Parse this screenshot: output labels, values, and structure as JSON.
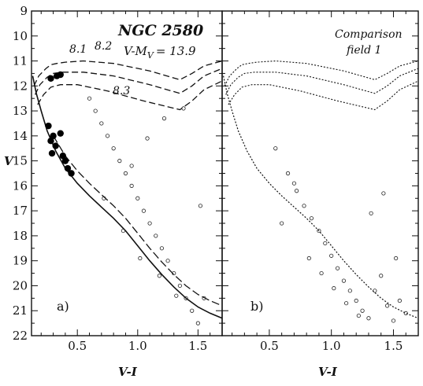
{
  "chart_data": [
    {
      "type": "scatter",
      "panel_letter": "a)",
      "title": "NGC 2580",
      "distance_modulus": "V-M",
      "distance_modulus_sub": "V",
      "distance_modulus_value": "= 13.9",
      "xlabel": "V-I",
      "ylabel": "V",
      "xlim": [
        0.12,
        1.7
      ],
      "ylim": [
        22,
        9
      ],
      "y_inverted": true,
      "x_ticks": [
        "0.5",
        "1.0",
        "1.5"
      ],
      "y_ticks": [
        "9",
        "10",
        "11",
        "12",
        "13",
        "14",
        "15",
        "16",
        "17",
        "18",
        "19",
        "20",
        "21",
        "22"
      ],
      "isochrone_labels": [
        "8.1",
        "8.2",
        "8.3"
      ],
      "series": [
        {
          "kind": "isochrone",
          "label": "8.1",
          "x": [
            0.14,
            0.18,
            0.24,
            0.28,
            0.33,
            0.4,
            0.55,
            0.8,
            1.1,
            1.35,
            1.45,
            1.55,
            1.7
          ],
          "y": [
            12.0,
            11.6,
            11.3,
            11.15,
            11.1,
            11.05,
            11.0,
            11.1,
            11.4,
            11.75,
            11.5,
            11.2,
            11.0
          ]
        },
        {
          "kind": "isochrone",
          "label": "8.2",
          "x": [
            0.15,
            0.19,
            0.25,
            0.3,
            0.38,
            0.55,
            0.8,
            1.1,
            1.35,
            1.45,
            1.55,
            1.7
          ],
          "y": [
            12.35,
            11.95,
            11.65,
            11.5,
            11.45,
            11.45,
            11.6,
            11.95,
            12.3,
            12.0,
            11.6,
            11.3
          ]
        },
        {
          "kind": "isochrone",
          "label": "8.3",
          "x": [
            0.17,
            0.22,
            0.28,
            0.36,
            0.5,
            0.75,
            1.05,
            1.35,
            1.45,
            1.55,
            1.7
          ],
          "y": [
            12.75,
            12.35,
            12.05,
            11.95,
            11.95,
            12.2,
            12.6,
            12.95,
            12.6,
            12.15,
            11.8
          ]
        },
        {
          "kind": "zams",
          "x": [
            0.13,
            0.16,
            0.2,
            0.25,
            0.32,
            0.4,
            0.5,
            0.6,
            0.7,
            0.8,
            0.9,
            1.0,
            1.1,
            1.2,
            1.3,
            1.4,
            1.5,
            1.6,
            1.7
          ],
          "y": [
            11.6,
            12.3,
            13.0,
            13.8,
            14.6,
            15.3,
            15.9,
            16.4,
            16.85,
            17.3,
            17.8,
            18.4,
            19.0,
            19.55,
            20.05,
            20.5,
            20.85,
            21.1,
            21.3
          ]
        },
        {
          "kind": "binary-sequence",
          "x": [
            0.3,
            0.4,
            0.5,
            0.6,
            0.7,
            0.8,
            0.9,
            1.0,
            1.1,
            1.2,
            1.3,
            1.4,
            1.5,
            1.6,
            1.7
          ],
          "y": [
            14.0,
            14.8,
            15.4,
            15.9,
            16.35,
            16.8,
            17.3,
            17.9,
            18.5,
            19.05,
            19.55,
            20.0,
            20.35,
            20.6,
            20.8
          ]
        },
        {
          "kind": "members",
          "x": [
            0.26,
            0.28,
            0.29,
            0.3,
            0.32,
            0.36,
            0.38,
            0.4,
            0.42,
            0.45,
            0.28,
            0.33,
            0.36
          ],
          "y": [
            13.6,
            14.2,
            14.7,
            14.0,
            14.4,
            13.9,
            14.8,
            15.0,
            15.3,
            15.5,
            11.7,
            11.6,
            11.55
          ]
        },
        {
          "kind": "field-stars",
          "x": [
            0.6,
            0.65,
            0.7,
            0.75,
            0.8,
            0.85,
            0.9,
            0.95,
            1.0,
            1.05,
            1.1,
            1.15,
            1.2,
            1.25,
            1.3,
            1.35,
            1.4,
            1.45,
            1.5,
            1.55,
            0.72,
            0.88,
            1.02,
            1.18,
            1.32,
            0.95,
            1.08,
            1.22,
            1.38,
            1.52
          ],
          "y": [
            12.5,
            13.0,
            13.5,
            14.0,
            14.5,
            15.0,
            15.5,
            16.0,
            16.5,
            17.0,
            17.5,
            18.0,
            18.5,
            19.0,
            19.5,
            20.0,
            20.5,
            21.0,
            21.5,
            20.5,
            16.5,
            17.8,
            18.9,
            19.6,
            20.4,
            15.2,
            14.1,
            13.3,
            12.9,
            16.8
          ]
        }
      ]
    },
    {
      "type": "scatter",
      "panel_letter": "b)",
      "title": "Comparison",
      "subtitle": "field 1",
      "xlabel": "V-I",
      "xlim": [
        0.12,
        1.7
      ],
      "ylim": [
        22,
        9
      ],
      "y_inverted": true,
      "x_ticks": [
        "0.5",
        "1.0",
        "1.5"
      ],
      "series": [
        {
          "kind": "isochrone",
          "x": [
            0.14,
            0.18,
            0.24,
            0.28,
            0.33,
            0.4,
            0.55,
            0.8,
            1.1,
            1.35,
            1.45,
            1.55,
            1.7
          ],
          "y": [
            12.0,
            11.6,
            11.3,
            11.15,
            11.1,
            11.05,
            11.0,
            11.1,
            11.4,
            11.75,
            11.5,
            11.2,
            11.0
          ]
        },
        {
          "kind": "isochrone",
          "x": [
            0.15,
            0.19,
            0.25,
            0.3,
            0.38,
            0.55,
            0.8,
            1.1,
            1.35,
            1.45,
            1.55,
            1.7
          ],
          "y": [
            12.35,
            11.95,
            11.65,
            11.5,
            11.45,
            11.45,
            11.6,
            11.95,
            12.3,
            12.0,
            11.6,
            11.3
          ]
        },
        {
          "kind": "isochrone",
          "x": [
            0.17,
            0.22,
            0.28,
            0.36,
            0.5,
            0.75,
            1.05,
            1.35,
            1.45,
            1.55,
            1.7
          ],
          "y": [
            12.75,
            12.35,
            12.05,
            11.95,
            11.95,
            12.2,
            12.6,
            12.95,
            12.6,
            12.15,
            11.8
          ]
        },
        {
          "kind": "zams",
          "x": [
            0.13,
            0.16,
            0.2,
            0.25,
            0.32,
            0.4,
            0.5,
            0.6,
            0.7,
            0.8,
            0.9,
            1.0,
            1.1,
            1.2,
            1.3,
            1.4,
            1.5,
            1.6,
            1.7
          ],
          "y": [
            11.6,
            12.3,
            13.0,
            13.8,
            14.6,
            15.3,
            15.9,
            16.4,
            16.85,
            17.3,
            17.8,
            18.4,
            19.0,
            19.55,
            20.05,
            20.5,
            20.85,
            21.1,
            21.3
          ]
        },
        {
          "kind": "field-stars",
          "x": [
            0.55,
            0.65,
            0.72,
            0.78,
            0.84,
            0.9,
            0.95,
            1.0,
            1.05,
            1.1,
            1.15,
            1.2,
            1.25,
            1.3,
            1.35,
            1.4,
            1.45,
            1.5,
            1.55,
            1.6,
            0.82,
            0.92,
            1.02,
            1.12,
            1.22,
            1.32,
            0.7,
            0.6,
            1.42,
            1.52
          ],
          "y": [
            14.5,
            15.5,
            16.2,
            16.8,
            17.3,
            17.8,
            18.3,
            18.8,
            19.3,
            19.8,
            20.2,
            20.6,
            21.0,
            21.3,
            20.2,
            19.6,
            20.8,
            21.4,
            20.6,
            21.1,
            18.9,
            19.5,
            20.1,
            20.7,
            21.2,
            17.1,
            15.9,
            17.5,
            16.3,
            18.9
          ]
        }
      ]
    }
  ]
}
